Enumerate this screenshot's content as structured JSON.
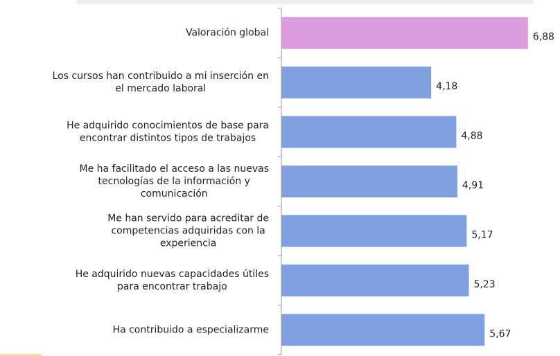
{
  "chart_data": {
    "type": "barh",
    "categories": [
      "Valoración global",
      "Los cursos han contribuido a mi inserción en\nel mercado laboral",
      "He adquirido  conocimientos de base para\nencontrar distintos tipos de trabajos",
      "Me ha facilitado el acceso a las nuevas\ntecnologías de la información y\ncomunicación",
      "Me han servido para acreditar de\ncompetencias adquiridas  con la\nexperiencia",
      "He adquirido  nuevas capacidades útiles\npara encontrar trabajo",
      "Ha contribuido  a especializarme"
    ],
    "values": [
      6.88,
      4.18,
      4.88,
      4.91,
      5.17,
      5.23,
      5.67
    ],
    "value_labels": [
      "6,88",
      "4,18",
      "4,88",
      "4,91",
      "5,17",
      "5,23",
      "5,67"
    ],
    "colors": [
      "#dd9cdd",
      "#809fdf",
      "#809fdf",
      "#809fdf",
      "#809fdf",
      "#809fdf",
      "#809fdf"
    ],
    "xlim": [
      0,
      7
    ]
  }
}
